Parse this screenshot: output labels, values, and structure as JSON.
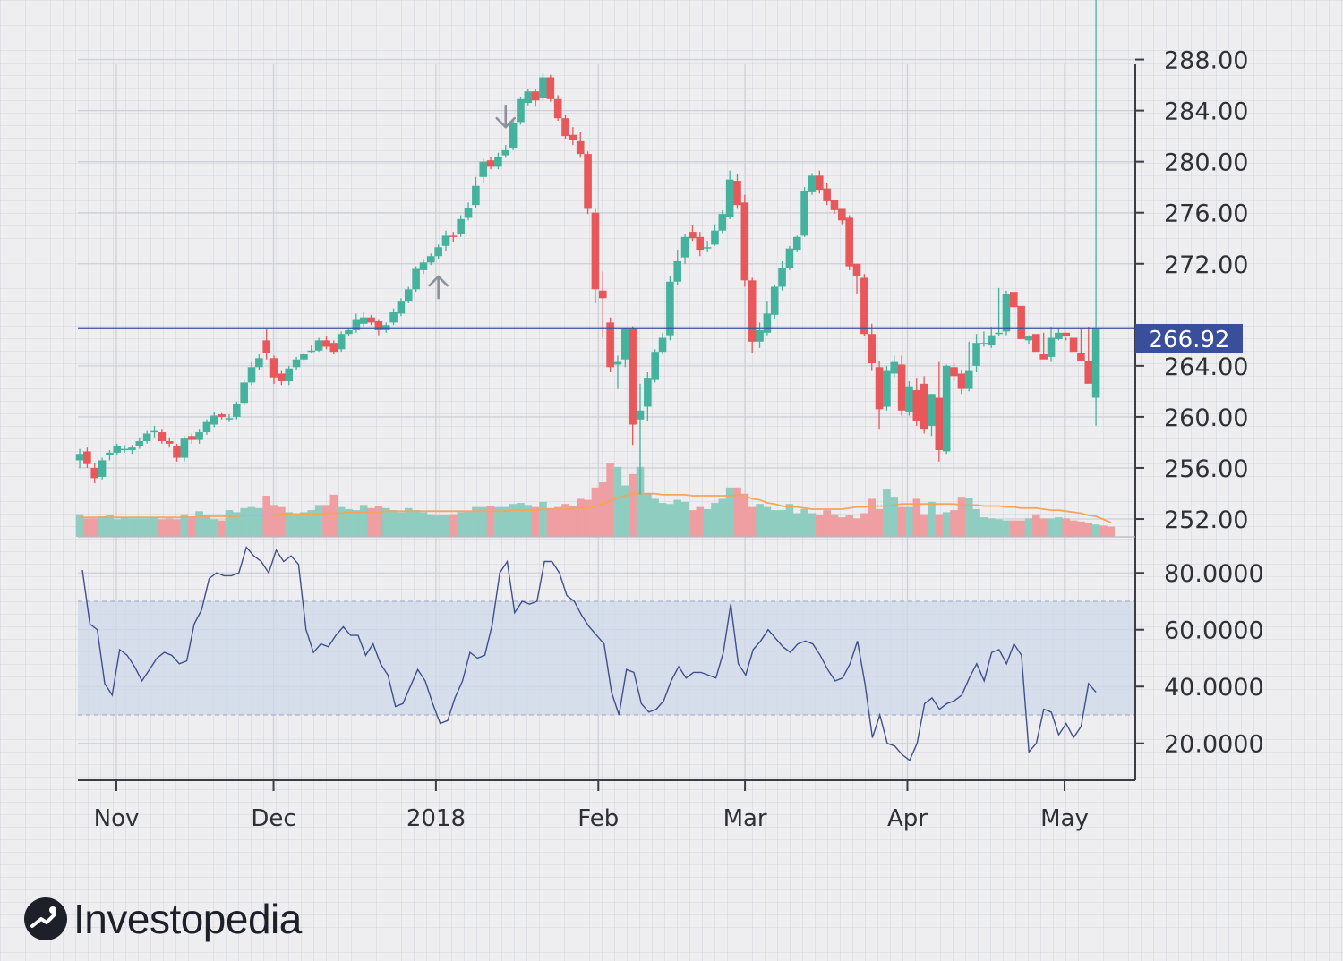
{
  "brand": {
    "name": "Investopedia",
    "logo_icon": "investopedia-logo-icon"
  },
  "colors": {
    "up": "#45b29d",
    "down": "#e8575a",
    "up_volume": "#8ecdc0",
    "down_volume": "#ef9ea1",
    "moving_average": "#f5a55a",
    "rsi_line": "#3f4f8c",
    "rsi_band": "#cdd8ea",
    "price_marker": "#3a4f9c",
    "signal_arrow": "#8d909a"
  },
  "chart_data": [
    {
      "type": "candlestick",
      "title": "",
      "x_ticks": [
        "Nov",
        "Dec",
        "2018",
        "Feb",
        "Mar",
        "Apr",
        "May"
      ],
      "x_tick_dates": [
        "2017-11-01",
        "2017-12-01",
        "2018-01-01",
        "2018-02-01",
        "2018-03-01",
        "2018-04-01",
        "2018-05-01"
      ],
      "x_range": [
        "2017-10-25",
        "2018-05-07"
      ],
      "ylim": [
        250.6,
        288.6
      ],
      "y_ticks": [
        "288.00",
        "284.00",
        "280.00",
        "276.00",
        "272.00",
        "264.00",
        "260.00",
        "256.00",
        "252.00"
      ],
      "last_price": "266.92",
      "grid": true,
      "signals": [
        {
          "type": "sell",
          "date": "2018-01-15"
        },
        {
          "type": "buy",
          "date": "2018-01-02"
        }
      ],
      "closes": [
        257.1,
        256.3,
        255.2,
        256.6,
        257.2,
        257.7,
        257.5,
        257.6,
        258.1,
        258.7,
        258.9,
        258.1,
        257.9,
        256.8,
        258.3,
        258.2,
        258.8,
        259.6,
        260.1,
        260.0,
        259.9,
        261.0,
        262.7,
        263.9,
        264.6,
        265.0,
        263.1,
        262.8,
        263.8,
        264.5,
        264.9,
        265.2,
        266.0,
        265.5,
        265.1,
        266.5,
        266.8,
        267.6,
        267.8,
        267.4,
        266.8,
        267.2,
        268.2,
        269.1,
        270.0,
        271.6,
        272.1,
        272.6,
        273.3,
        274.2,
        274.1,
        275.5,
        276.4,
        278.1,
        280.0,
        279.6,
        280.4,
        280.9,
        283.0,
        284.9,
        285.5,
        284.8,
        286.6,
        284.9,
        283.4,
        282.0,
        281.7,
        280.6,
        276.3,
        270.0,
        269.3,
        263.9,
        264.3,
        266.9,
        259.4,
        260.5,
        263.0,
        265.1,
        266.2,
        270.6,
        272.2,
        274.1,
        274.0,
        273.1,
        273.3,
        274.6,
        275.9,
        278.6,
        276.6,
        270.7,
        265.9,
        266.8,
        268.1,
        270.2,
        271.7,
        273.2,
        274.1,
        277.7,
        278.9,
        277.8,
        276.9,
        276.2,
        275.4,
        271.8,
        271.0,
        266.5,
        264.2,
        260.6,
        263.6,
        264.3,
        260.5,
        262.4,
        259.7,
        259.0,
        261.8,
        257.4,
        264.0,
        263.2,
        262.2,
        263.6,
        265.8,
        265.8,
        266.4,
        266.6,
        269.6,
        268.6,
        266.1,
        266.3,
        265.1,
        264.5,
        266.2,
        266.6,
        266.3,
        265.1,
        264.4,
        262.6,
        266.9
      ],
      "opens": [
        256.6,
        257.3,
        256.0,
        255.3,
        257.0,
        257.2,
        257.4,
        257.4,
        257.7,
        258.1,
        258.9,
        258.8,
        258.1,
        257.7,
        256.8,
        258.5,
        258.2,
        258.8,
        259.4,
        260.2,
        259.9,
        260.0,
        261.1,
        262.7,
        263.9,
        266.0,
        264.6,
        263.4,
        262.8,
        263.9,
        264.5,
        265.2,
        265.2,
        266.0,
        265.8,
        265.3,
        266.5,
        266.8,
        267.3,
        267.8,
        267.5,
        266.8,
        267.4,
        268.1,
        269.1,
        270.0,
        271.5,
        272.1,
        272.6,
        273.4,
        274.2,
        274.3,
        275.6,
        276.6,
        278.8,
        280.1,
        279.6,
        280.5,
        281.1,
        283.1,
        284.6,
        285.5,
        285.0,
        286.6,
        284.9,
        283.4,
        282.1,
        281.6,
        280.6,
        276.0,
        269.9,
        267.4,
        264.1,
        264.5,
        266.9,
        259.8,
        260.8,
        262.9,
        265.1,
        266.4,
        270.6,
        272.5,
        274.5,
        274.1,
        273.3,
        273.5,
        274.6,
        275.7,
        278.5,
        276.8,
        270.7,
        265.9,
        266.6,
        268.0,
        270.2,
        271.7,
        273.1,
        274.2,
        277.6,
        278.9,
        277.9,
        277.0,
        276.3,
        275.6,
        272.0,
        270.9,
        266.5,
        263.9,
        260.8,
        263.4,
        264.1,
        260.4,
        262.1,
        262.6,
        259.3,
        261.5,
        257.3,
        263.9,
        263.4,
        262.2,
        264.0,
        265.8,
        265.6,
        266.5,
        266.7,
        269.8,
        268.7,
        266.0,
        266.5,
        264.9,
        264.7,
        266.1,
        266.6,
        266.2,
        265.0,
        264.4,
        261.5
      ],
      "highs": [
        257.5,
        257.6,
        256.4,
        256.8,
        257.4,
        257.9,
        257.8,
        257.8,
        258.4,
        258.9,
        259.3,
        259.0,
        258.4,
        257.9,
        258.5,
        258.7,
        259.0,
        259.8,
        260.4,
        260.3,
        260.2,
        261.2,
        262.9,
        264.3,
        264.9,
        266.9,
        264.8,
        263.6,
        264.0,
        264.7,
        265.0,
        265.6,
        266.2,
        266.3,
        266.0,
        266.7,
        266.9,
        268.1,
        268.2,
        268.0,
        267.6,
        267.4,
        268.5,
        269.3,
        270.2,
        271.8,
        272.3,
        272.8,
        273.5,
        274.6,
        274.5,
        275.8,
        276.8,
        278.8,
        280.2,
        280.4,
        280.7,
        281.3,
        283.2,
        285.1,
        285.7,
        285.7,
        286.9,
        286.8,
        285.2,
        283.7,
        282.7,
        282.3,
        280.8,
        276.3,
        271.4,
        267.8,
        264.8,
        266.9,
        267.1,
        262.6,
        263.5,
        265.3,
        266.6,
        271.0,
        273.1,
        274.3,
        275.0,
        274.5,
        273.8,
        275.1,
        276.2,
        279.3,
        279.0,
        277.4,
        270.9,
        267.4,
        269.1,
        270.3,
        272.2,
        273.4,
        274.2,
        278.0,
        279.1,
        279.3,
        278.3,
        277.0,
        276.0,
        275.8,
        272.0,
        271.2,
        267.3,
        264.4,
        264.0,
        264.8,
        264.8,
        262.8,
        263.0,
        263.2,
        261.8,
        264.3,
        264.1,
        264.2,
        263.7,
        265.9,
        266.5,
        266.7,
        267.0,
        270.1,
        269.9,
        268.8,
        267.7,
        266.4,
        265.8,
        266.6,
        267.0,
        266.9,
        266.0,
        265.5,
        266.9,
        267.0
      ],
      "lows": [
        256.0,
        256.0,
        254.8,
        255.1,
        256.6,
        257.0,
        257.2,
        257.1,
        257.5,
        257.9,
        258.4,
        257.9,
        257.6,
        256.5,
        256.5,
        257.9,
        257.9,
        258.6,
        259.2,
        259.8,
        259.6,
        259.8,
        260.9,
        262.5,
        263.7,
        264.5,
        262.6,
        262.5,
        262.5,
        263.7,
        264.3,
        265.0,
        265.1,
        265.3,
        264.9,
        265.1,
        266.3,
        266.6,
        267.1,
        267.2,
        266.4,
        266.6,
        267.2,
        267.9,
        268.9,
        269.8,
        271.2,
        271.9,
        272.4,
        273.0,
        273.7,
        274.1,
        275.4,
        276.4,
        278.3,
        279.4,
        279.4,
        280.3,
        280.9,
        282.9,
        284.4,
        284.3,
        284.8,
        284.7,
        283.2,
        281.8,
        281.3,
        280.3,
        275.9,
        268.9,
        266.2,
        263.5,
        262.2,
        263.9,
        257.8,
        253.9,
        259.7,
        262.7,
        264.9,
        266.0,
        270.3,
        272.0,
        273.8,
        272.6,
        272.9,
        273.4,
        274.4,
        275.5,
        276.3,
        270.2,
        265.0,
        265.4,
        266.4,
        267.7,
        269.9,
        271.5,
        272.9,
        274.1,
        277.4,
        277.5,
        276.6,
        275.9,
        275.1,
        271.5,
        269.6,
        266.3,
        263.6,
        259.0,
        260.5,
        263.1,
        260.1,
        260.1,
        259.3,
        258.7,
        258.5,
        256.5,
        257.1,
        262.8,
        261.8,
        262.0,
        263.5,
        265.5,
        265.4,
        266.3,
        266.4,
        269.4,
        268.4,
        265.7,
        265.8,
        264.6,
        264.3,
        266.0,
        266.2,
        265.9,
        264.8,
        264.2,
        259.3,
        261.2
      ],
      "volumes_relative": [
        0.22,
        0.18,
        0.18,
        0.2,
        0.21,
        0.17,
        0.19,
        0.18,
        0.18,
        0.18,
        0.19,
        0.17,
        0.18,
        0.17,
        0.22,
        0.2,
        0.25,
        0.21,
        0.17,
        0.16,
        0.26,
        0.24,
        0.28,
        0.29,
        0.28,
        0.4,
        0.31,
        0.29,
        0.24,
        0.23,
        0.24,
        0.26,
        0.31,
        0.31,
        0.41,
        0.29,
        0.27,
        0.26,
        0.31,
        0.28,
        0.3,
        0.28,
        0.26,
        0.24,
        0.28,
        0.26,
        0.24,
        0.22,
        0.21,
        0.21,
        0.22,
        0.24,
        0.25,
        0.29,
        0.29,
        0.3,
        0.29,
        0.29,
        0.32,
        0.33,
        0.31,
        0.29,
        0.34,
        0.28,
        0.29,
        0.32,
        0.3,
        0.37,
        0.36,
        0.48,
        0.53,
        0.72,
        0.68,
        0.5,
        0.61,
        0.68,
        0.42,
        0.37,
        0.33,
        0.32,
        0.36,
        0.34,
        0.26,
        0.29,
        0.27,
        0.33,
        0.37,
        0.48,
        0.48,
        0.42,
        0.29,
        0.32,
        0.29,
        0.26,
        0.26,
        0.32,
        0.23,
        0.27,
        0.23,
        0.21,
        0.26,
        0.22,
        0.19,
        0.21,
        0.18,
        0.23,
        0.37,
        0.27,
        0.46,
        0.39,
        0.29,
        0.29,
        0.37,
        0.22,
        0.34,
        0.22,
        0.24,
        0.26,
        0.39,
        0.38,
        0.27,
        0.19,
        0.18,
        0.17,
        0.16,
        0.16,
        0.16,
        0.18,
        0.22,
        0.18,
        0.18,
        0.19,
        0.18,
        0.16,
        0.15,
        0.14,
        0.12,
        0.11,
        0.1
      ],
      "moving_average_relative": [
        0.19,
        0.19,
        0.19,
        0.19,
        0.19,
        0.19,
        0.19,
        0.19,
        0.19,
        0.19,
        0.19,
        0.19,
        0.19,
        0.19,
        0.19,
        0.19,
        0.2,
        0.2,
        0.2,
        0.2,
        0.2,
        0.2,
        0.21,
        0.21,
        0.21,
        0.21,
        0.21,
        0.22,
        0.22,
        0.22,
        0.22,
        0.22,
        0.22,
        0.23,
        0.23,
        0.23,
        0.24,
        0.24,
        0.24,
        0.24,
        0.24,
        0.25,
        0.25,
        0.25,
        0.25,
        0.25,
        0.25,
        0.25,
        0.25,
        0.25,
        0.25,
        0.25,
        0.25,
        0.25,
        0.25,
        0.25,
        0.25,
        0.25,
        0.26,
        0.26,
        0.26,
        0.26,
        0.27,
        0.27,
        0.27,
        0.27,
        0.27,
        0.28,
        0.28,
        0.3,
        0.32,
        0.35,
        0.38,
        0.4,
        0.42,
        0.42,
        0.42,
        0.42,
        0.41,
        0.41,
        0.41,
        0.41,
        0.4,
        0.4,
        0.4,
        0.4,
        0.4,
        0.4,
        0.41,
        0.4,
        0.37,
        0.36,
        0.33,
        0.32,
        0.3,
        0.29,
        0.29,
        0.28,
        0.27,
        0.27,
        0.27,
        0.27,
        0.27,
        0.28,
        0.29,
        0.29,
        0.3,
        0.3,
        0.3,
        0.31,
        0.32,
        0.32,
        0.32,
        0.32,
        0.32,
        0.32,
        0.32,
        0.32,
        0.31,
        0.31,
        0.31,
        0.3,
        0.3,
        0.3,
        0.29,
        0.29,
        0.28,
        0.28,
        0.28,
        0.27,
        0.26,
        0.26,
        0.25,
        0.24,
        0.23,
        0.21,
        0.2,
        0.17,
        0.14
      ]
    },
    {
      "type": "line",
      "title": "",
      "ylim": [
        7.0,
        87.0
      ],
      "y_ticks": [
        "80.0000",
        "60.0000",
        "40.0000",
        "20.0000"
      ],
      "band": [
        30,
        70
      ],
      "values": [
        81.0,
        62.0,
        60.0,
        41.0,
        37.0,
        53.0,
        51.0,
        47.0,
        42.0,
        46.0,
        50.0,
        52.0,
        51.0,
        48.0,
        49.0,
        62.0,
        67.0,
        78.0,
        80.0,
        79.0,
        79.0,
        80.0,
        89.0,
        86.0,
        84.0,
        80.0,
        88.0,
        84.0,
        86.0,
        83.0,
        60.0,
        52.0,
        55.0,
        54.0,
        58.0,
        61.0,
        58.0,
        58.0,
        51.0,
        55.0,
        48.0,
        44.0,
        33.0,
        34.0,
        40.0,
        46.0,
        42.0,
        34.0,
        27.0,
        28.0,
        36.0,
        42.0,
        52.0,
        50.0,
        51.0,
        62.0,
        80.0,
        84.0,
        66.0,
        70.0,
        69.0,
        70.0,
        84.0,
        84.0,
        80.0,
        72.0,
        70.0,
        65.0,
        61.0,
        58.0,
        55.0,
        38.0,
        30.0,
        46.0,
        45.0,
        34.0,
        31.0,
        32.0,
        35.0,
        42.0,
        47.0,
        43.0,
        45.0,
        45.0,
        44.0,
        43.0,
        52.0,
        69.0,
        48.0,
        44.0,
        53.0,
        56.0,
        60.0,
        57.0,
        54.0,
        52.0,
        55.0,
        56.0,
        55.0,
        51.0,
        46.0,
        42.0,
        43.0,
        48.0,
        56.0,
        41.0,
        22.0,
        30.0,
        20.0,
        19.0,
        16.0,
        14.0,
        20.0,
        34.0,
        36.0,
        32.0,
        34.0,
        35.0,
        37.0,
        43.0,
        48.0,
        42.0,
        52.0,
        53.0,
        48.0,
        55.0,
        51.0,
        17.0,
        20.0,
        32.0,
        31.0,
        23.0,
        27.0,
        22.0,
        26.0,
        41.0,
        38.0
      ]
    }
  ]
}
